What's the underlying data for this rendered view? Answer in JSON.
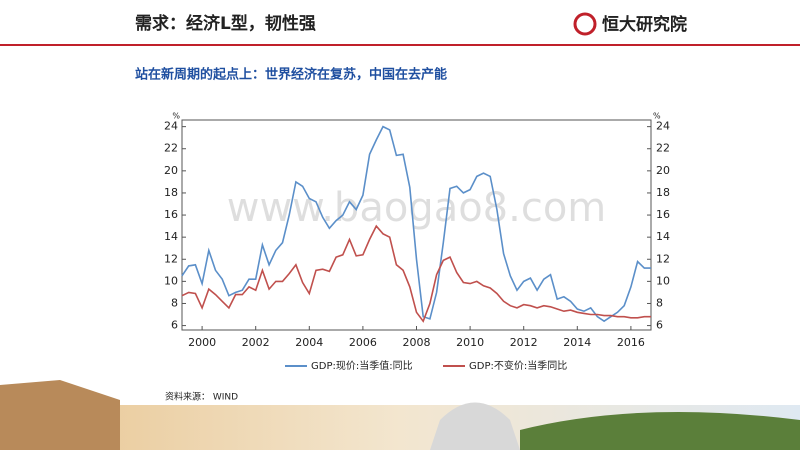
{
  "header": {
    "title": "需求：经济L型，韧性强",
    "logo": "恒大研究院"
  },
  "subtitle": "站在新周期的起点上：世界经济在复苏，中国在去产能",
  "source": "资料来源： WIND",
  "chart_data": {
    "type": "line",
    "watermark": "www.baogao8.com",
    "ylabel": "%",
    "y2label": "%",
    "x": [
      1999.25,
      1999.5,
      1999.75,
      2000,
      2000.25,
      2000.5,
      2000.75,
      2001,
      2001.25,
      2001.5,
      2001.75,
      2002,
      2002.25,
      2002.5,
      2002.75,
      2003,
      2003.25,
      2003.5,
      2003.75,
      2004,
      2004.25,
      2004.5,
      2004.75,
      2005,
      2005.25,
      2005.5,
      2005.75,
      2006,
      2006.25,
      2006.5,
      2006.75,
      2007,
      2007.25,
      2007.5,
      2007.75,
      2008,
      2008.25,
      2008.5,
      2008.75,
      2009,
      2009.25,
      2009.5,
      2009.75,
      2010,
      2010.25,
      2010.5,
      2010.75,
      2011,
      2011.25,
      2011.5,
      2011.75,
      2012,
      2012.25,
      2012.5,
      2012.75,
      2013,
      2013.25,
      2013.5,
      2013.75,
      2014,
      2014.25,
      2014.5,
      2014.75,
      2015,
      2015.25,
      2015.5,
      2015.75,
      2016,
      2016.25,
      2016.5,
      2016.75
    ],
    "series": [
      {
        "name": "GDP:现价:当季值:同比",
        "color": "#5b8fc9",
        "values": [
          10.5,
          11.4,
          11.5,
          9.8,
          12.8,
          11.0,
          10.2,
          8.7,
          9.0,
          9.2,
          10.2,
          10.2,
          13.3,
          11.5,
          12.8,
          13.5,
          16.0,
          19.0,
          18.6,
          17.5,
          17.2,
          15.8,
          14.8,
          15.5,
          16.0,
          17.2,
          16.5,
          17.8,
          21.5,
          22.8,
          24.0,
          23.7,
          21.4,
          21.5,
          18.5,
          12.0,
          6.8,
          6.6,
          9.0,
          13.5,
          18.4,
          18.6,
          18.0,
          18.3,
          19.5,
          19.8,
          19.5,
          16.5,
          12.5,
          10.5,
          9.2,
          10.0,
          10.3,
          9.2,
          10.2,
          10.6,
          8.4,
          8.6,
          8.2,
          7.5,
          7.3,
          7.6,
          6.8,
          6.4,
          6.8,
          7.2,
          7.8,
          9.5,
          11.8,
          11.2,
          11.2
        ]
      },
      {
        "name": "GDP:不变价:当季同比",
        "color": "#c0504d",
        "values": [
          8.7,
          9.0,
          8.9,
          7.6,
          9.3,
          8.8,
          8.2,
          7.6,
          8.8,
          8.8,
          9.5,
          9.2,
          11.0,
          9.3,
          10.0,
          10.0,
          10.7,
          11.5,
          9.9,
          8.9,
          11.0,
          11.1,
          10.9,
          12.2,
          12.4,
          13.8,
          12.3,
          12.4,
          13.8,
          15.0,
          14.3,
          14.0,
          11.5,
          11.0,
          9.5,
          7.2,
          6.4,
          8.0,
          10.6,
          11.9,
          12.2,
          10.8,
          9.9,
          9.8,
          10.0,
          9.6,
          9.4,
          8.9,
          8.2,
          7.8,
          7.6,
          7.9,
          7.8,
          7.6,
          7.8,
          7.7,
          7.5,
          7.3,
          7.4,
          7.2,
          7.1,
          7.0,
          7.0,
          6.9,
          6.9,
          6.8,
          6.8,
          6.7,
          6.7,
          6.8,
          6.8
        ]
      }
    ],
    "xlim": [
      1999.25,
      2016.75
    ],
    "xticks": [
      2000,
      2002,
      2004,
      2006,
      2008,
      2010,
      2012,
      2014,
      2016
    ],
    "ylim": [
      5.6,
      24.6
    ],
    "yticks": [
      6,
      8,
      10,
      12,
      14,
      16,
      18,
      20,
      22,
      24
    ],
    "y2lim": [
      5.6,
      24.6
    ],
    "y2ticks": [
      6,
      8,
      10,
      12,
      14,
      16,
      18,
      20,
      22,
      24
    ],
    "grid": false,
    "legend": "bottom"
  }
}
